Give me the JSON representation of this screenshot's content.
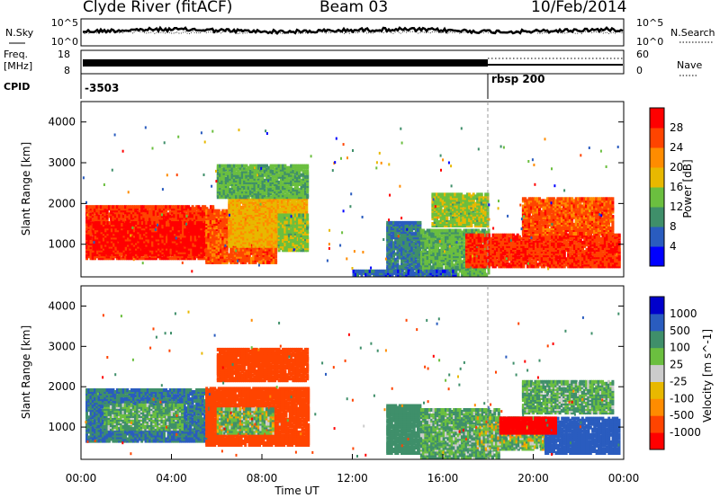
{
  "header": {
    "station": "Clyde River (fitACF)",
    "beam": "Beam 03",
    "date": "10/Feb/2014"
  },
  "top_panels": {
    "nsky_label": "N.Sky",
    "nsearch_label": "N.Search",
    "freq_label_top": "Freq.",
    "freq_label_unit": "[MHz]",
    "nave_label": "Nave",
    "cpid_label": "CPID",
    "nsky_ticks": [
      "10^5",
      "10^0"
    ],
    "nsearch_ticks": [
      "10^5",
      "10^0"
    ],
    "freq_ticks": [
      "18",
      "8"
    ],
    "nave_ticks": [
      "60",
      "0"
    ],
    "cpid_values": [
      "-3503",
      "rbsp 200"
    ]
  },
  "colors": {
    "power_scale": [
      "#0000ff",
      "#2a5cbf",
      "#3f8f6a",
      "#6bbf3f",
      "#e8b800",
      "#ff8c00",
      "#ff4400",
      "#ff0000"
    ],
    "velocity_scale": [
      "#ff0000",
      "#ff4400",
      "#ff8c00",
      "#e8b800",
      "#cccccc",
      "#6bbf3f",
      "#3f8f6a",
      "#2a5cbf",
      "#0000cc"
    ]
  },
  "chart_data": [
    {
      "type": "heatmap",
      "name": "power",
      "ylabel": "Slant Range [km]",
      "yticks": [
        1000,
        2000,
        3000,
        4000
      ],
      "ylim": [
        200,
        4500
      ],
      "xlim": [
        0,
        24
      ],
      "colorbar_label": "Power [dB]",
      "colorbar_ticks": [
        "28",
        "24",
        "20",
        "16",
        "12",
        "8",
        "4"
      ],
      "colorbar_range": [
        0,
        30
      ],
      "regions": [
        {
          "t0": 0.2,
          "t1": 5.8,
          "r0": 700,
          "r1": 2000,
          "level": 26
        },
        {
          "t0": 0.5,
          "t1": 5.5,
          "r0": 800,
          "r1": 1600,
          "level": 28
        },
        {
          "t0": 5.5,
          "t1": 8.6,
          "r0": 600,
          "r1": 1900,
          "level": 24
        },
        {
          "t0": 6.5,
          "t1": 10.0,
          "r0": 1000,
          "r1": 2200,
          "level": 18
        },
        {
          "t0": 8.7,
          "t1": 10.0,
          "r0": 900,
          "r1": 1800,
          "level": 14
        },
        {
          "t0": 6.0,
          "t1": 10.0,
          "r0": 2200,
          "r1": 3000,
          "level": 12
        },
        {
          "t0": 13.5,
          "t1": 15.0,
          "r0": 400,
          "r1": 1600,
          "level": 8
        },
        {
          "t0": 15.0,
          "t1": 18.0,
          "r0": 300,
          "r1": 1400,
          "level": 12
        },
        {
          "t0": 15.5,
          "t1": 18.0,
          "r0": 1500,
          "r1": 2300,
          "level": 14
        },
        {
          "t0": 17.0,
          "t1": 23.8,
          "r0": 500,
          "r1": 1300,
          "level": 26
        },
        {
          "t0": 19.5,
          "t1": 23.5,
          "r0": 1300,
          "r1": 2200,
          "level": 24
        },
        {
          "t0": 12.0,
          "t1": 16.5,
          "r0": 200,
          "r1": 400,
          "level": 6
        }
      ]
    },
    {
      "type": "heatmap",
      "name": "velocity",
      "xlabel": "Time UT",
      "ylabel": "Slant Range [km]",
      "xticks": [
        "00:00",
        "04:00",
        "08:00",
        "12:00",
        "16:00",
        "20:00",
        "00:00"
      ],
      "yticks": [
        1000,
        2000,
        3000,
        4000
      ],
      "ylim": [
        200,
        4500
      ],
      "xlim": [
        0,
        24
      ],
      "colorbar_label": "Velocity [m s^-1]",
      "colorbar_ticks": [
        "1000",
        "500",
        "100",
        "25",
        "-25",
        "-100",
        "-500",
        "-1000"
      ],
      "regions": [
        {
          "t0": 0.2,
          "t1": 5.8,
          "r0": 700,
          "r1": 2000,
          "level": 500
        },
        {
          "t0": 1.0,
          "t1": 4.5,
          "r0": 1000,
          "r1": 1600,
          "level": 100
        },
        {
          "t0": 5.5,
          "t1": 10.0,
          "r0": 600,
          "r1": 2000,
          "level": -300
        },
        {
          "t0": 6.0,
          "t1": 8.5,
          "r0": 900,
          "r1": 1500,
          "level": 60
        },
        {
          "t0": 6.0,
          "t1": 10.0,
          "r0": 2200,
          "r1": 3000,
          "level": -200
        },
        {
          "t0": 13.5,
          "t1": 15.0,
          "r0": 400,
          "r1": 1600,
          "level": 300
        },
        {
          "t0": 15.0,
          "t1": 18.5,
          "r0": 300,
          "r1": 1500,
          "level": 100
        },
        {
          "t0": 17.5,
          "t1": 20.5,
          "r0": 500,
          "r1": 1300,
          "level": 60
        },
        {
          "t0": 20.5,
          "t1": 23.8,
          "r0": 400,
          "r1": 1300,
          "level": 700
        },
        {
          "t0": 18.5,
          "t1": 21.0,
          "r0": 900,
          "r1": 1300,
          "level": -600
        },
        {
          "t0": 19.5,
          "t1": 23.5,
          "r0": 1400,
          "r1": 2200,
          "level": 100
        }
      ]
    }
  ]
}
